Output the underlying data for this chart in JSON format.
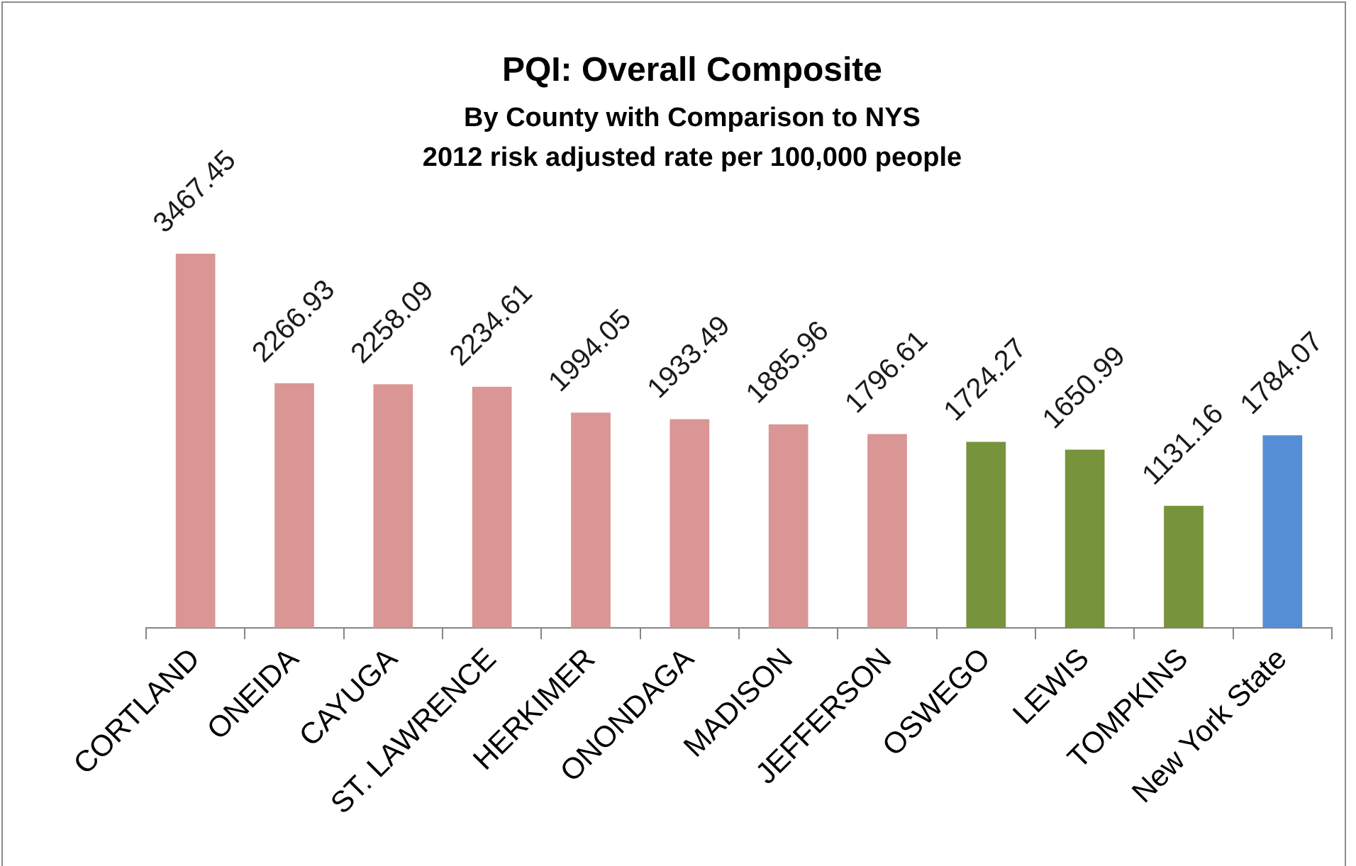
{
  "chart_data": {
    "type": "bar",
    "title": "PQI: Overall Composite",
    "subtitle": "By County with Comparison to NYS\n2012 risk adjusted rate per 100,000 people",
    "categories": [
      "CORTLAND",
      "ONEIDA",
      "CAYUGA",
      "ST. LAWRENCE",
      "HERKIMER",
      "ONONDAGA",
      "MADISON",
      "JEFFERSON",
      "OSWEGO",
      "LEWIS",
      "TOMPKINS",
      "New York State"
    ],
    "values": [
      3467.45,
      2266.93,
      2258.09,
      2234.61,
      1994.05,
      1933.49,
      1885.96,
      1796.61,
      1724.27,
      1650.99,
      1131.16,
      1784.07
    ],
    "colors": [
      "#d99694",
      "#d99694",
      "#d99694",
      "#d99694",
      "#d99694",
      "#d99694",
      "#d99694",
      "#d99694",
      "#77933c",
      "#77933c",
      "#77933c",
      "#558ed5"
    ],
    "data_labels": true
  }
}
